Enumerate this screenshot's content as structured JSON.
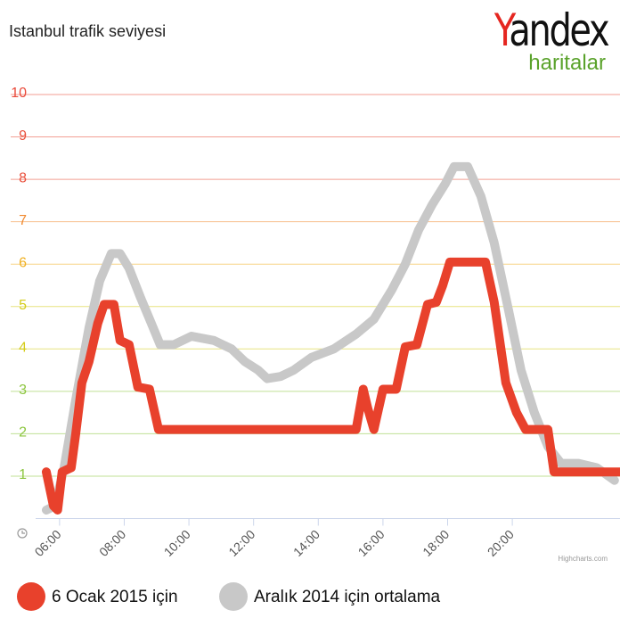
{
  "chart_data": {
    "type": "line",
    "title": "Istanbul trafik seviyesi",
    "logo": {
      "brand": "Yandex",
      "sub": "haritalar"
    },
    "credit": "Highcharts.com",
    "xlim": [
      5.26,
      23.33
    ],
    "xticks": [
      {
        "value": 6,
        "label": "06:00"
      },
      {
        "value": 8,
        "label": "08:00"
      },
      {
        "value": 10,
        "label": "10:00"
      },
      {
        "value": 12,
        "label": "12:00"
      },
      {
        "value": 14,
        "label": "14:00"
      },
      {
        "value": 16,
        "label": "16:00"
      },
      {
        "value": 18,
        "label": "18:00"
      },
      {
        "value": 20,
        "label": "20:00"
      }
    ],
    "ylim": [
      0,
      10
    ],
    "yticks": [
      1,
      2,
      3,
      4,
      5,
      6,
      7,
      8,
      9,
      10
    ],
    "ytick_colors": [
      "#8cc63f",
      "#8cc63f",
      "#8cc63f",
      "#d4cc1a",
      "#d4cc1a",
      "#f0b020",
      "#f08a30",
      "#e9503c",
      "#e9503c",
      "#e94a3a"
    ],
    "grid": true,
    "series": [
      {
        "name": "6 Ocak 2015 için",
        "color": "#e8412c",
        "x": [
          5.59,
          5.81,
          5.94,
          6.08,
          6.36,
          6.5,
          6.69,
          6.91,
          7.18,
          7.38,
          7.68,
          7.87,
          8.15,
          8.42,
          8.78,
          9.06,
          15.17,
          15.39,
          15.53,
          15.72,
          16.0,
          16.41,
          16.69,
          17.05,
          17.38,
          17.65,
          17.85,
          18.07,
          19.17,
          19.44,
          19.8,
          20.13,
          20.41,
          21.1,
          21.29,
          23.33
        ],
        "values": [
          1.1,
          0.3,
          0.2,
          1.1,
          1.2,
          2,
          3.2,
          3.7,
          4.6,
          5.05,
          5.05,
          4.2,
          4.1,
          3.1,
          3.05,
          2.1,
          2.1,
          3.05,
          2.6,
          2.1,
          3.05,
          3.05,
          4.05,
          4.1,
          5.05,
          5.1,
          5.5,
          6.05,
          6.05,
          5.1,
          3.2,
          2.5,
          2.1,
          2.1,
          1.1,
          1.1
        ]
      },
      {
        "name": "Aralık 2014 için ortalama",
        "color": "#c8c8c8",
        "x": [
          5.59,
          5.86,
          6.14,
          6.5,
          6.91,
          7.24,
          7.6,
          7.87,
          8.15,
          8.51,
          8.84,
          9.11,
          9.53,
          10.08,
          10.77,
          11.32,
          11.73,
          12.14,
          12.42,
          12.83,
          13.24,
          13.79,
          14.48,
          15.17,
          15.72,
          16.28,
          16.69,
          17.1,
          17.52,
          17.93,
          18.2,
          18.62,
          19.03,
          19.44,
          19.86,
          20.27,
          20.68,
          21.1,
          21.51,
          22.06,
          22.61,
          23.16
        ],
        "values": [
          0.2,
          0.3,
          1.2,
          2.8,
          4.5,
          5.6,
          6.25,
          6.25,
          5.9,
          5.2,
          4.6,
          4.1,
          4.1,
          4.3,
          4.2,
          4.0,
          3.7,
          3.5,
          3.3,
          3.35,
          3.5,
          3.8,
          4.0,
          4.35,
          4.7,
          5.4,
          6.0,
          6.8,
          7.4,
          7.9,
          8.3,
          8.3,
          7.6,
          6.5,
          5.0,
          3.5,
          2.5,
          1.7,
          1.3,
          1.3,
          1.2,
          0.9
        ]
      }
    ]
  }
}
